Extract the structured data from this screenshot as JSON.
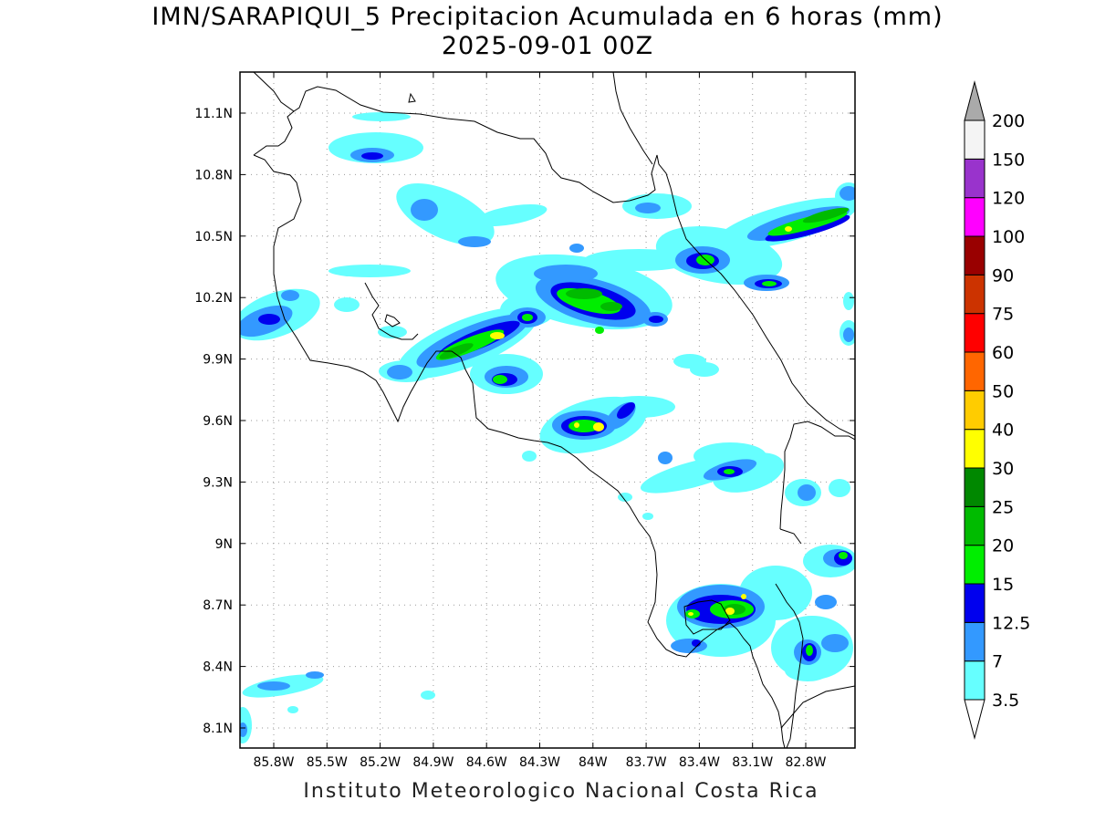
{
  "title": "IMN/SARAPIQUI_5 Precipitacion Acumulada en 6 horas (mm)",
  "subtitle": "2025-09-01 00Z",
  "credit": "Instituto Meteorologico Nacional Costa Rica",
  "lat_ticks": [
    "11.1N",
    "10.8N",
    "10.5N",
    "10.2N",
    "9.9N",
    "9.6N",
    "9.3N",
    "9N",
    "8.7N",
    "8.4N",
    "8.1N"
  ],
  "lon_ticks": [
    "85.8W",
    "85.5W",
    "85.2W",
    "84.9W",
    "84.6W",
    "84.3W",
    "84W",
    "83.7W",
    "83.4W",
    "83.1W",
    "82.8W"
  ],
  "legend": {
    "levels": [
      "3.5",
      "7",
      "12.5",
      "15",
      "20",
      "25",
      "30",
      "40",
      "50",
      "60",
      "75",
      "90",
      "100",
      "120",
      "150",
      "200"
    ],
    "colors": [
      "#66ffff",
      "#3399ff",
      "#0000ee",
      "#00ee00",
      "#00bb00",
      "#008800",
      "#ffff00",
      "#ffcc00",
      "#ff6600",
      "#ff0000",
      "#cc3300",
      "#990000",
      "#ff00ff",
      "#9933cc",
      "#f4f4f4",
      "#aaaaaa"
    ]
  },
  "colors": {
    "c35": "#66ffff",
    "c7": "#3399ff",
    "c125": "#0000ee",
    "c15": "#00ee00",
    "c20": "#00bb00",
    "c40": "#ffff00",
    "coast": "#000000"
  }
}
